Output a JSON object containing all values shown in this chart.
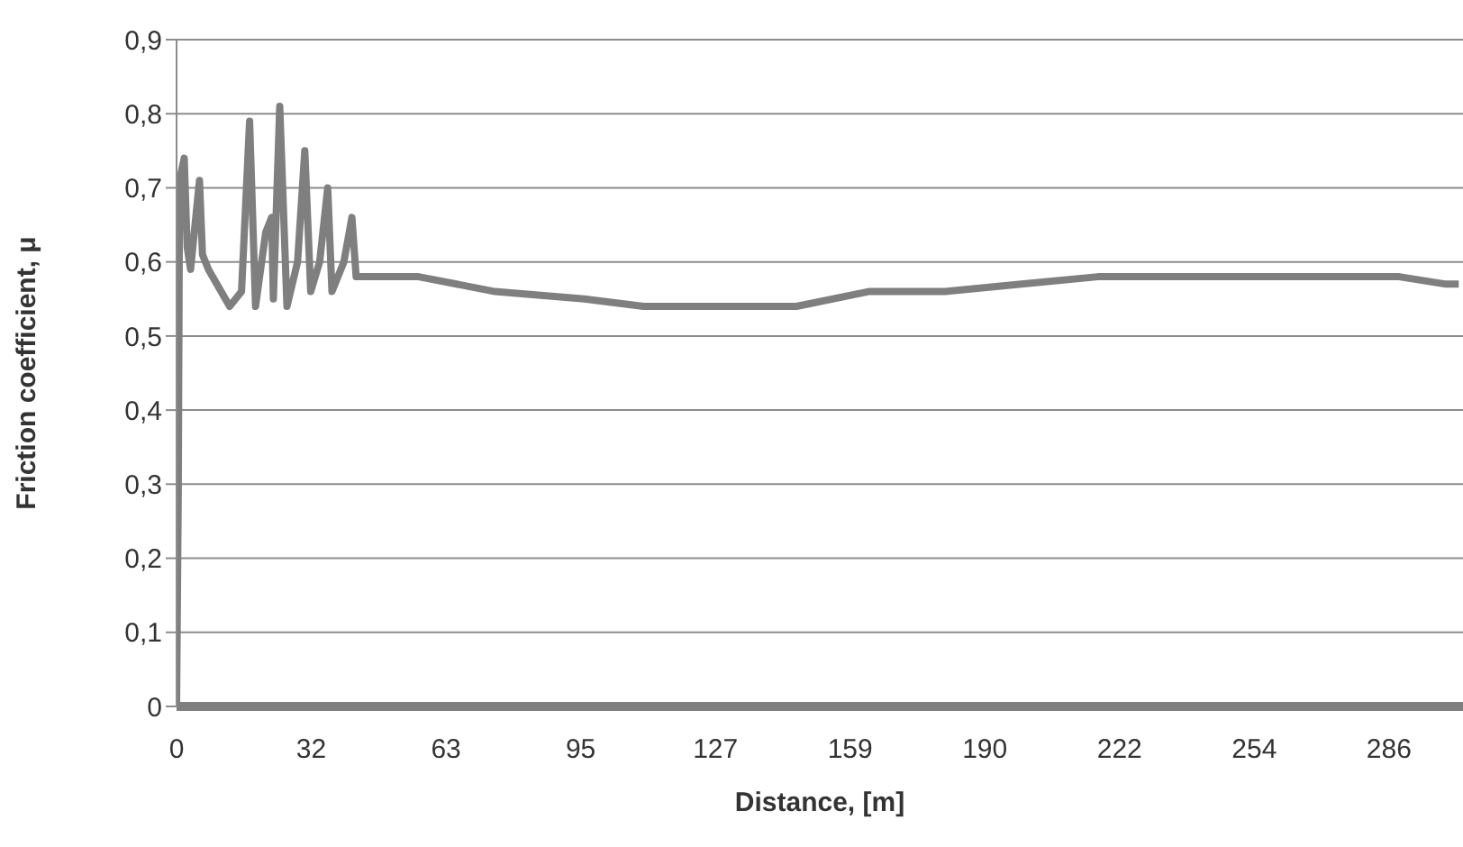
{
  "chart_data": {
    "type": "line",
    "xlabel": "Distance, [m]",
    "ylabel": "Friction coefficient, μ",
    "x": [
      0,
      0.4,
      0.7,
      1.8,
      2.5,
      3.3,
      5.4,
      6.1,
      7.5,
      12.5,
      15.3,
      17.2,
      18.6,
      21,
      22.4,
      22.8,
      24.3,
      26,
      28.5,
      30.2,
      31.6,
      33.7,
      35.6,
      36.6,
      39.4,
      41.3,
      42.3,
      43.8,
      57,
      75,
      96,
      110,
      128,
      146,
      163,
      181,
      199,
      217,
      234,
      252,
      270,
      288,
      299,
      302
    ],
    "series": [
      {
        "color": "#7f7f7f",
        "values": [
          0,
          0.29,
          0.71,
          0.74,
          0.62,
          0.59,
          0.71,
          0.61,
          0.59,
          0.54,
          0.56,
          0.79,
          0.54,
          0.64,
          0.66,
          0.55,
          0.81,
          0.54,
          0.6,
          0.75,
          0.56,
          0.6,
          0.7,
          0.56,
          0.6,
          0.66,
          0.58,
          0.58,
          0.58,
          0.56,
          0.55,
          0.54,
          0.54,
          0.54,
          0.56,
          0.56,
          0.57,
          0.58,
          0.58,
          0.58,
          0.58,
          0.58,
          0.57,
          0.57
        ]
      }
    ],
    "xlim": [
      0,
      303
    ],
    "xticks": [
      0,
      {
        "value": 31.73,
        "label": "32"
      },
      {
        "value": 63.46,
        "label": "63"
      },
      {
        "value": 95.19,
        "label": "95"
      },
      {
        "value": 126.92,
        "label": "127"
      },
      {
        "value": 158.65,
        "label": "159"
      },
      {
        "value": 190.38,
        "label": "190"
      },
      {
        "value": 222.11,
        "label": "222"
      },
      {
        "value": 253.84,
        "label": "254"
      },
      {
        "value": 285.57,
        "label": "286"
      }
    ],
    "ylim": [
      0,
      0.9
    ],
    "yticks": [
      0,
      {
        "value": 0.1,
        "label": "0,1"
      },
      {
        "value": 0.2,
        "label": "0,2"
      },
      {
        "value": 0.3,
        "label": "0,3"
      },
      {
        "value": 0.4,
        "label": "0,4"
      },
      {
        "value": 0.5,
        "label": "0,5"
      },
      {
        "value": 0.6,
        "label": "0,6"
      },
      {
        "value": 0.7,
        "label": "0,7"
      },
      {
        "value": 0.8,
        "label": "0,8"
      },
      {
        "value": 0.9,
        "label": "0,9"
      }
    ],
    "grid": "y",
    "legend": false,
    "marker": "none",
    "line_style": "solid"
  }
}
